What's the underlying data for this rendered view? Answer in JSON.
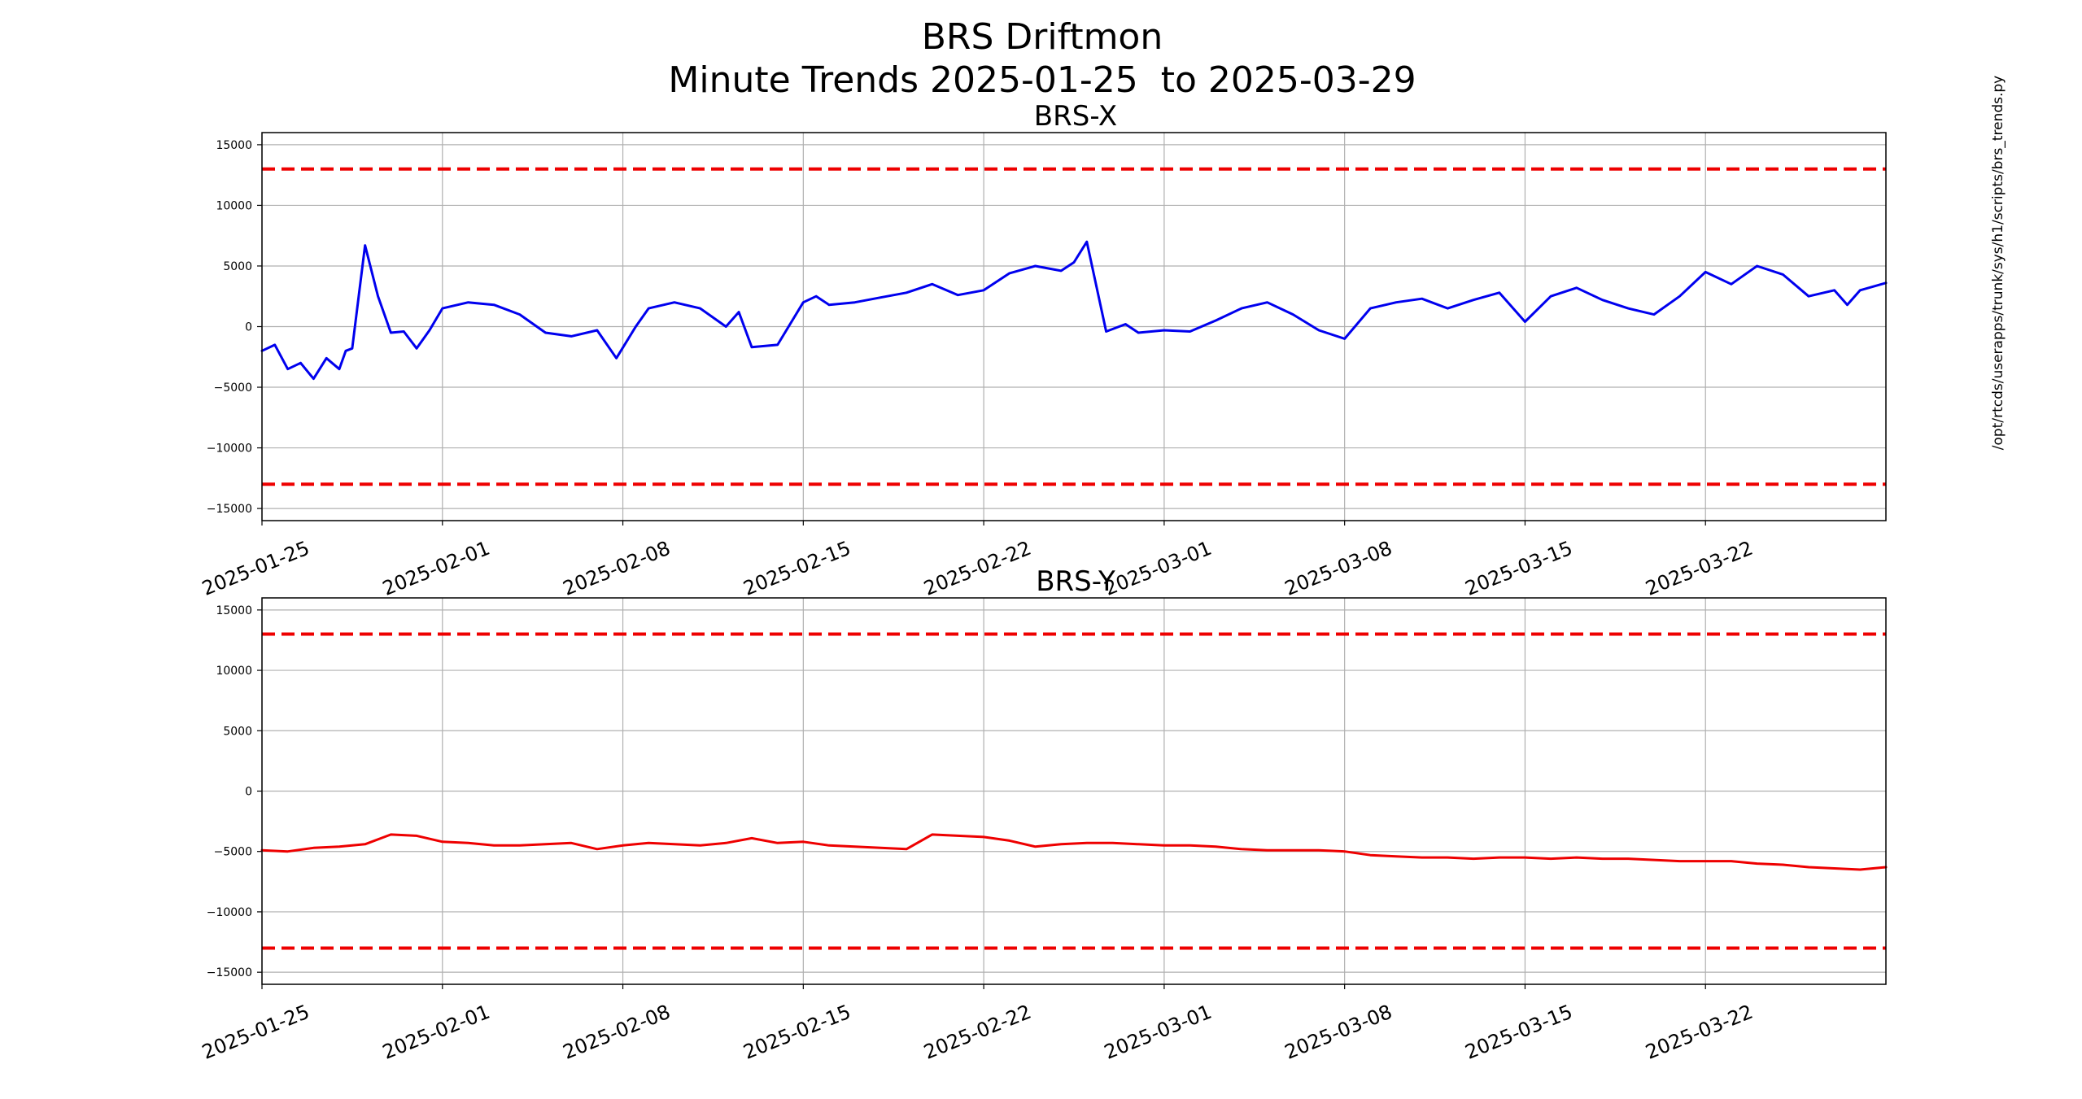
{
  "figure": {
    "title": "BRS Driftmon",
    "subtitle": "Minute Trends 2025-01-25  to 2025-03-29",
    "side_label": "/opt/rtcds/userapps/trunk/sys/h1/scripts/brs_trends.py"
  },
  "colors": {
    "brs_x_line": "#0000ee",
    "brs_y_line": "#ee0000",
    "threshold": "#ee0000",
    "grid": "#b0b0b0"
  },
  "chart_data": [
    {
      "type": "line",
      "title": "BRS-X",
      "xlabel": "",
      "ylabel": "",
      "x_range": [
        "2025-01-25",
        "2025-03-29"
      ],
      "ylim": [
        -16000,
        16000
      ],
      "yticks": [
        15000,
        10000,
        5000,
        0,
        -5000,
        -10000,
        -15000
      ],
      "ytick_labels": [
        "15000",
        "10000",
        "5000",
        "0",
        "−5000",
        "−10000",
        "−15000"
      ],
      "xticks": [
        "2025-01-25",
        "2025-02-01",
        "2025-02-08",
        "2025-02-15",
        "2025-02-22",
        "2025-03-01",
        "2025-03-08",
        "2025-03-15",
        "2025-03-22"
      ],
      "grid": true,
      "thresholds": [
        13000,
        -13000
      ],
      "series": [
        {
          "color": "#0000ee",
          "x": [
            "2025-01-25",
            "2025-01-25T12:00",
            "2025-01-26",
            "2025-01-26T12:00",
            "2025-01-27",
            "2025-01-27T12:00",
            "2025-01-28",
            "2025-01-28T06:00",
            "2025-01-28T12:00",
            "2025-01-29",
            "2025-01-29T12:00",
            "2025-01-30",
            "2025-01-30T12:00",
            "2025-01-31",
            "2025-01-31T12:00",
            "2025-02-01",
            "2025-02-02",
            "2025-02-03",
            "2025-02-04",
            "2025-02-05",
            "2025-02-06",
            "2025-02-07",
            "2025-02-07T18:00",
            "2025-02-08T12:00",
            "2025-02-09",
            "2025-02-10",
            "2025-02-11",
            "2025-02-12",
            "2025-02-12T12:00",
            "2025-02-13",
            "2025-02-14",
            "2025-02-15",
            "2025-02-15T12:00",
            "2025-02-16",
            "2025-02-17",
            "2025-02-18",
            "2025-02-19",
            "2025-02-20",
            "2025-02-21",
            "2025-02-22",
            "2025-02-23",
            "2025-02-24",
            "2025-02-25",
            "2025-02-25T12:00",
            "2025-02-26",
            "2025-02-26T18:00",
            "2025-02-27T12:00",
            "2025-02-28",
            "2025-03-01",
            "2025-03-02",
            "2025-03-03",
            "2025-03-04",
            "2025-03-05",
            "2025-03-06",
            "2025-03-07",
            "2025-03-08",
            "2025-03-09",
            "2025-03-10",
            "2025-03-11",
            "2025-03-12",
            "2025-03-13",
            "2025-03-14",
            "2025-03-15",
            "2025-03-16",
            "2025-03-17",
            "2025-03-18",
            "2025-03-19",
            "2025-03-20",
            "2025-03-21",
            "2025-03-22",
            "2025-03-23",
            "2025-03-24",
            "2025-03-25",
            "2025-03-26",
            "2025-03-27",
            "2025-03-27T12:00",
            "2025-03-28",
            "2025-03-29"
          ],
          "y": [
            -2000,
            -1500,
            -3500,
            -3000,
            -4300,
            -2600,
            -3500,
            -2000,
            -1800,
            6700,
            2500,
            -500,
            -400,
            -1800,
            -300,
            1500,
            2000,
            1800,
            1000,
            -500,
            -800,
            -300,
            -2600,
            0,
            1500,
            2000,
            1500,
            0,
            1200,
            -1700,
            -1500,
            2000,
            2500,
            1800,
            2000,
            2400,
            2800,
            3500,
            2600,
            3000,
            4400,
            5000,
            4600,
            5300,
            7000,
            -400,
            200,
            -500,
            -300,
            -400,
            500,
            1500,
            2000,
            1000,
            -300,
            -1000,
            1500,
            2000,
            2300,
            1500,
            2200,
            2800,
            400,
            2500,
            3200,
            2200,
            1500,
            1000,
            2500,
            4500,
            3500,
            5000,
            4300,
            2500,
            3000,
            1800,
            3000,
            3600
          ]
        }
      ]
    },
    {
      "type": "line",
      "title": "BRS-Y",
      "xlabel": "",
      "ylabel": "",
      "x_range": [
        "2025-01-25",
        "2025-03-29"
      ],
      "ylim": [
        -16000,
        16000
      ],
      "yticks": [
        15000,
        10000,
        5000,
        0,
        -5000,
        -10000,
        -15000
      ],
      "ytick_labels": [
        "15000",
        "10000",
        "5000",
        "0",
        "−5000",
        "−10000",
        "−15000"
      ],
      "xticks": [
        "2025-01-25",
        "2025-02-01",
        "2025-02-08",
        "2025-02-15",
        "2025-02-22",
        "2025-03-01",
        "2025-03-08",
        "2025-03-15",
        "2025-03-22"
      ],
      "grid": true,
      "thresholds": [
        13000,
        -13000
      ],
      "series": [
        {
          "color": "#ee0000",
          "x": [
            "2025-01-25",
            "2025-01-26",
            "2025-01-27",
            "2025-01-28",
            "2025-01-29",
            "2025-01-30",
            "2025-01-31",
            "2025-02-01",
            "2025-02-02",
            "2025-02-03",
            "2025-02-04",
            "2025-02-05",
            "2025-02-06",
            "2025-02-07",
            "2025-02-08",
            "2025-02-09",
            "2025-02-10",
            "2025-02-11",
            "2025-02-12",
            "2025-02-13",
            "2025-02-14",
            "2025-02-15",
            "2025-02-16",
            "2025-02-17",
            "2025-02-18",
            "2025-02-19",
            "2025-02-20",
            "2025-02-21",
            "2025-02-22",
            "2025-02-23",
            "2025-02-24",
            "2025-02-25",
            "2025-02-26",
            "2025-02-27",
            "2025-02-28",
            "2025-03-01",
            "2025-03-02",
            "2025-03-03",
            "2025-03-04",
            "2025-03-05",
            "2025-03-06",
            "2025-03-07",
            "2025-03-08",
            "2025-03-09",
            "2025-03-10",
            "2025-03-11",
            "2025-03-12",
            "2025-03-13",
            "2025-03-14",
            "2025-03-15",
            "2025-03-16",
            "2025-03-17",
            "2025-03-18",
            "2025-03-19",
            "2025-03-20",
            "2025-03-21",
            "2025-03-22",
            "2025-03-23",
            "2025-03-24",
            "2025-03-25",
            "2025-03-26",
            "2025-03-27",
            "2025-03-28",
            "2025-03-29"
          ],
          "y": [
            -4900,
            -5000,
            -4700,
            -4600,
            -4400,
            -3600,
            -3700,
            -4200,
            -4300,
            -4500,
            -4500,
            -4400,
            -4300,
            -4800,
            -4500,
            -4300,
            -4400,
            -4500,
            -4300,
            -3900,
            -4300,
            -4200,
            -4500,
            -4600,
            -4700,
            -4800,
            -3600,
            -3700,
            -3800,
            -4100,
            -4600,
            -4400,
            -4300,
            -4300,
            -4400,
            -4500,
            -4500,
            -4600,
            -4800,
            -4900,
            -4900,
            -4900,
            -5000,
            -5300,
            -5400,
            -5500,
            -5500,
            -5600,
            -5500,
            -5500,
            -5600,
            -5500,
            -5600,
            -5600,
            -5700,
            -5800,
            -5800,
            -5800,
            -6000,
            -6100,
            -6300,
            -6400,
            -6500,
            -6300
          ]
        }
      ]
    }
  ]
}
